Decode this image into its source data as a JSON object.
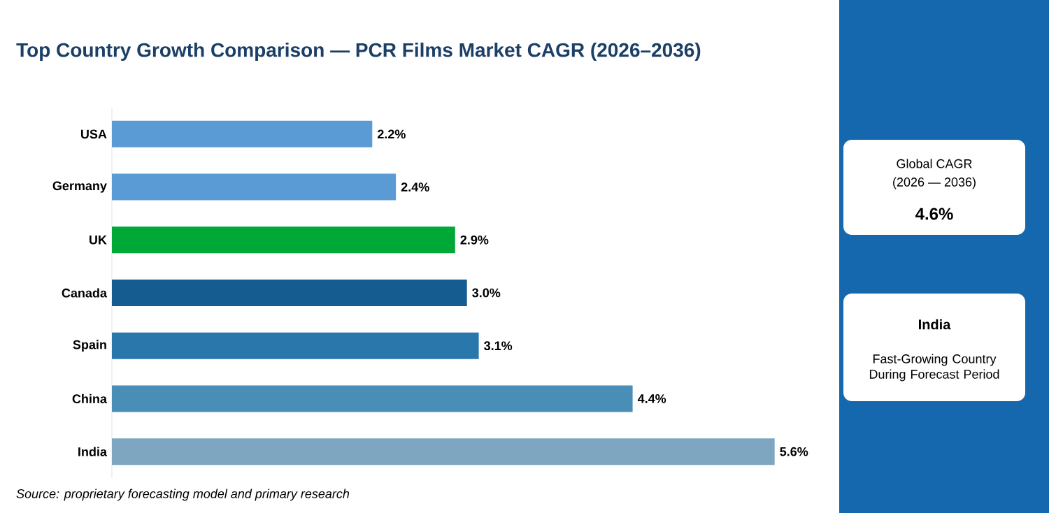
{
  "chart_data": {
    "type": "bar",
    "orientation": "horizontal",
    "title": "Top Country Growth Comparison — PCR Films Market CAGR (2026–2036)",
    "categories": [
      "USA",
      "Germany",
      "UK",
      "Canada",
      "Spain",
      "China",
      "India"
    ],
    "values": [
      2.2,
      2.4,
      2.9,
      3.0,
      3.1,
      4.4,
      5.6
    ],
    "value_labels": [
      "2.2%",
      "2.4%",
      "2.9%",
      "3.0%",
      "3.1%",
      "4.4%",
      "5.6%"
    ],
    "colors": [
      "#5b9bd5",
      "#5b9bd5",
      "#00a935",
      "#155d91",
      "#2a77ab",
      "#488eb7",
      "#7fa6c0"
    ],
    "annotations": [
      "Source: proprietary forecasting model and primary research",
      "Global CAGR",
      "(2026 — 2036)",
      "4.6%",
      "India",
      "Fast-Growing Country During Forecast Period"
    ]
  }
}
